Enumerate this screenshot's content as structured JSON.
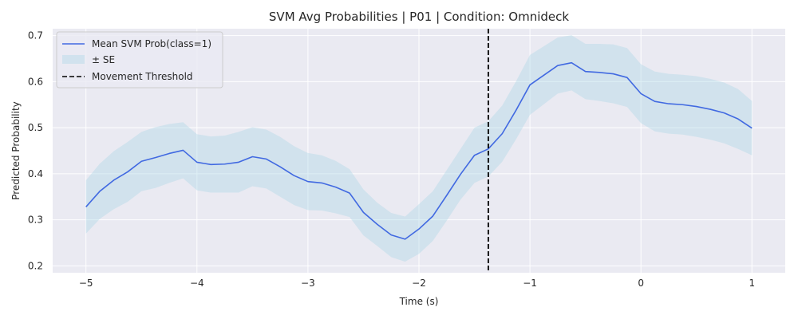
{
  "chart_data": {
    "type": "line",
    "title": "SVM Avg Probabilities | P01 | Condition: Omnideck",
    "xlabel": "Time (s)",
    "ylabel": "Predicted Probability",
    "xlim": [
      -5.3,
      1.3
    ],
    "ylim": [
      0.185,
      0.715
    ],
    "xticks": [
      -5,
      -4,
      -3,
      -2,
      -1,
      0,
      1
    ],
    "xtick_labels": [
      "−5",
      "−4",
      "−3",
      "−2",
      "−1",
      "0",
      "1"
    ],
    "yticks": [
      0.2,
      0.3,
      0.4,
      0.5,
      0.6,
      0.7
    ],
    "ytick_labels": [
      "0.2",
      "0.3",
      "0.4",
      "0.5",
      "0.6",
      "0.7"
    ],
    "grid": true,
    "legend_position": "top-left",
    "colors": {
      "line": "#4169e1",
      "band": "#add8e6",
      "threshold": "#000000",
      "plot_background": "#eaeaf2"
    },
    "series": [
      {
        "name": "Mean SVM Prob(class=1)",
        "kind": "line",
        "x": [
          -5,
          -4.875,
          -4.75,
          -4.625,
          -4.5,
          -4.375,
          -4.25,
          -4.125,
          -4,
          -3.875,
          -3.75,
          -3.625,
          -3.5,
          -3.375,
          -3.25,
          -3.125,
          -3,
          -2.875,
          -2.75,
          -2.625,
          -2.5,
          -2.375,
          -2.25,
          -2.125,
          -2,
          -1.875,
          -1.75,
          -1.625,
          -1.5,
          -1.375,
          -1.25,
          -1.125,
          -1,
          -0.875,
          -0.75,
          -0.625,
          -0.5,
          -0.375,
          -0.25,
          -0.125,
          0,
          0.125,
          0.25,
          0.375,
          0.5,
          0.625,
          0.75,
          0.875,
          1
        ],
        "y": [
          0.328,
          0.362,
          0.386,
          0.404,
          0.427,
          0.435,
          0.444,
          0.451,
          0.425,
          0.42,
          0.421,
          0.425,
          0.437,
          0.432,
          0.415,
          0.396,
          0.383,
          0.38,
          0.371,
          0.358,
          0.316,
          0.29,
          0.267,
          0.258,
          0.28,
          0.308,
          0.353,
          0.399,
          0.44,
          0.454,
          0.487,
          0.538,
          0.593,
          0.614,
          0.635,
          0.641,
          0.622,
          0.62,
          0.617,
          0.609,
          0.574,
          0.557,
          0.552,
          0.55,
          0.546,
          0.54,
          0.532,
          0.519,
          0.499
        ]
      },
      {
        "name": "± SE",
        "kind": "band",
        "x": [
          -5,
          -4.875,
          -4.75,
          -4.625,
          -4.5,
          -4.375,
          -4.25,
          -4.125,
          -4,
          -3.875,
          -3.75,
          -3.625,
          -3.5,
          -3.375,
          -3.25,
          -3.125,
          -3,
          -2.875,
          -2.75,
          -2.625,
          -2.5,
          -2.375,
          -2.25,
          -2.125,
          -2,
          -1.875,
          -1.75,
          -1.625,
          -1.5,
          -1.375,
          -1.25,
          -1.125,
          -1,
          -0.875,
          -0.75,
          -0.625,
          -0.5,
          -0.375,
          -0.25,
          -0.125,
          0,
          0.125,
          0.25,
          0.375,
          0.5,
          0.625,
          0.75,
          0.875,
          1
        ],
        "lower": [
          0.27,
          0.302,
          0.323,
          0.339,
          0.362,
          0.369,
          0.38,
          0.39,
          0.364,
          0.359,
          0.359,
          0.359,
          0.373,
          0.368,
          0.35,
          0.332,
          0.321,
          0.32,
          0.314,
          0.306,
          0.266,
          0.243,
          0.219,
          0.209,
          0.226,
          0.254,
          0.298,
          0.344,
          0.38,
          0.394,
          0.426,
          0.475,
          0.528,
          0.551,
          0.574,
          0.581,
          0.562,
          0.558,
          0.553,
          0.545,
          0.51,
          0.492,
          0.487,
          0.485,
          0.48,
          0.474,
          0.466,
          0.454,
          0.44
        ],
        "upper": [
          0.386,
          0.422,
          0.449,
          0.469,
          0.491,
          0.501,
          0.508,
          0.512,
          0.486,
          0.481,
          0.483,
          0.491,
          0.501,
          0.496,
          0.48,
          0.46,
          0.445,
          0.44,
          0.428,
          0.41,
          0.366,
          0.337,
          0.315,
          0.307,
          0.334,
          0.362,
          0.408,
          0.454,
          0.5,
          0.514,
          0.548,
          0.601,
          0.658,
          0.677,
          0.696,
          0.701,
          0.682,
          0.682,
          0.681,
          0.673,
          0.638,
          0.622,
          0.617,
          0.615,
          0.612,
          0.606,
          0.598,
          0.584,
          0.558
        ]
      },
      {
        "name": "Movement Threshold",
        "kind": "vline",
        "x": -1.375
      }
    ]
  }
}
